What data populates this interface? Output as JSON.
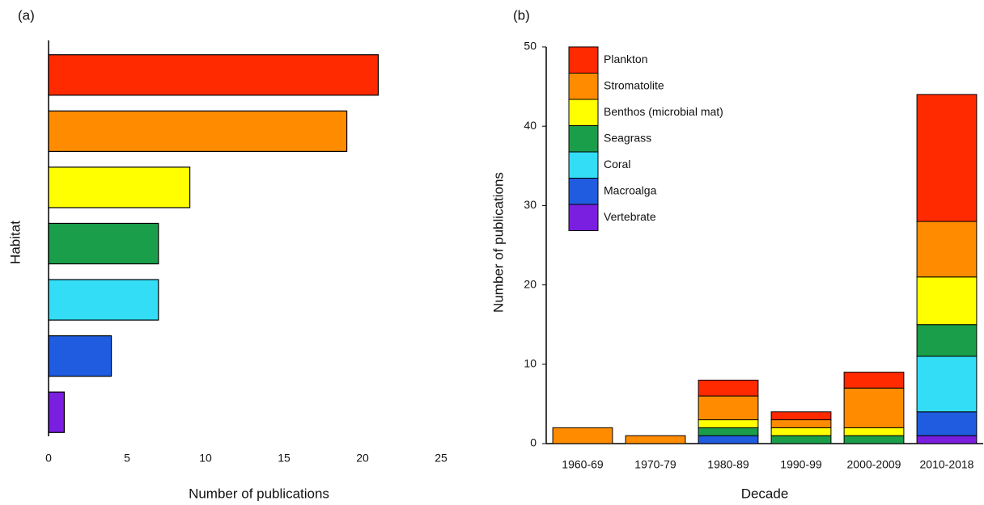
{
  "chart_data": [
    {
      "type": "bar",
      "orientation": "horizontal",
      "panel_label": "(a)",
      "x_label": "Number of publications",
      "y_label": "Habitat",
      "categories": [
        null,
        null,
        null,
        null,
        null,
        null,
        null
      ],
      "values": [
        21,
        19,
        9,
        7,
        7,
        4,
        1
      ],
      "colors": [
        "#ff2a00",
        "#ff8c00",
        "#ffff00",
        "#1a9e4a",
        "#33ddf5",
        "#1f5ce0",
        "#7a1fe0"
      ],
      "xlim": [
        0,
        25
      ],
      "xticks": [
        0,
        5,
        10,
        15,
        20,
        25
      ]
    },
    {
      "type": "stacked_bar",
      "panel_label": "(b)",
      "x_label": "Decade",
      "y_label": "Number of publications",
      "categories": [
        "1960-69",
        "1970-79",
        "1980-89",
        "1990-99",
        "2000-2009",
        "2010-2018"
      ],
      "series": [
        {
          "name": "Plankton",
          "color": "#ff2a00",
          "values": [
            0,
            0,
            2,
            1,
            2,
            16
          ]
        },
        {
          "name": "Stromatolite",
          "color": "#ff8c00",
          "values": [
            2,
            1,
            3,
            1,
            5,
            7
          ]
        },
        {
          "name": "Benthos (microbial mat)",
          "color": "#ffff00",
          "values": [
            0,
            0,
            1,
            1,
            1,
            6
          ]
        },
        {
          "name": "Seagrass",
          "color": "#1a9e4a",
          "values": [
            0,
            0,
            1,
            1,
            1,
            4
          ]
        },
        {
          "name": "Coral",
          "color": "#33ddf5",
          "values": [
            0,
            0,
            0,
            0,
            0,
            7
          ]
        },
        {
          "name": "Macroalga",
          "color": "#1f5ce0",
          "values": [
            0,
            0,
            1,
            0,
            0,
            3
          ]
        },
        {
          "name": "Vertebrate",
          "color": "#7a1fe0",
          "values": [
            0,
            0,
            0,
            0,
            0,
            1
          ]
        }
      ],
      "ylim": [
        0,
        50
      ],
      "yticks": [
        0,
        10,
        20,
        30,
        40,
        50
      ],
      "legend": "upper left"
    }
  ]
}
